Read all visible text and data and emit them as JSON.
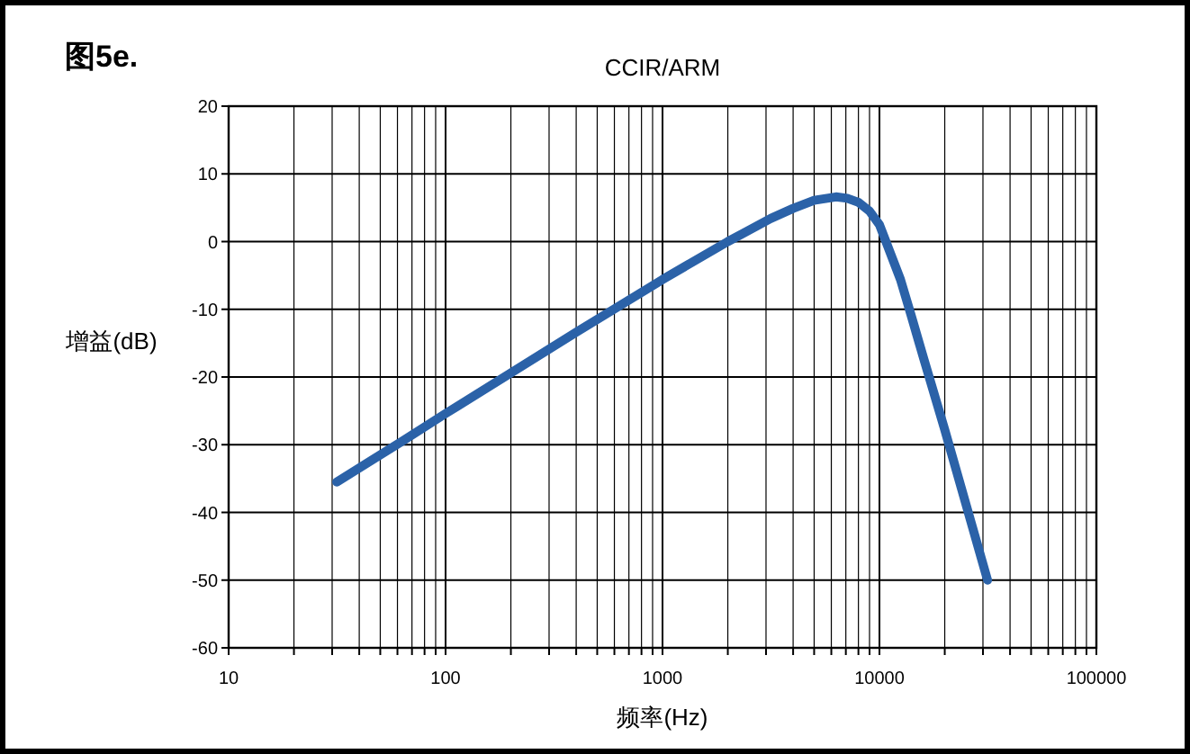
{
  "chart_data": {
    "type": "line",
    "title": "CCIR/ARM",
    "xlabel": "频率(Hz)",
    "ylabel": "增益(dB)",
    "annotations": [
      "图5e."
    ],
    "log": "x",
    "grid": true,
    "marker": "none",
    "line_style": "solid",
    "x": [
      31.5,
      63,
      100,
      200,
      400,
      800,
      1000,
      2000,
      3150,
      4000,
      5000,
      6300,
      7100,
      8000,
      9000,
      10000,
      12500,
      14000,
      16000,
      20000,
      31500
    ],
    "series": [
      {
        "color": "#2b62a8",
        "values": [
          -35.5,
          -29.5,
          -25.4,
          -19.4,
          -13.4,
          -7.5,
          -5.6,
          0,
          3.4,
          4.9,
          6.1,
          6.6,
          6.4,
          5.8,
          4.5,
          2.5,
          -5.6,
          -10.9,
          -17.3,
          -27.8,
          -50
        ]
      }
    ],
    "xlim": [
      10,
      100000
    ],
    "xticks": [
      10,
      {
        "value": 20,
        "label": null
      },
      {
        "value": 30,
        "label": null
      },
      {
        "value": 40,
        "label": null
      },
      {
        "value": 50,
        "label": null
      },
      {
        "value": 60,
        "label": null
      },
      {
        "value": 70,
        "label": null
      },
      {
        "value": 80,
        "label": null
      },
      {
        "value": 90,
        "label": null
      },
      100,
      {
        "value": 200,
        "label": null
      },
      {
        "value": 300,
        "label": null
      },
      {
        "value": 400,
        "label": null
      },
      {
        "value": 500,
        "label": null
      },
      {
        "value": 600,
        "label": null
      },
      {
        "value": 700,
        "label": null
      },
      {
        "value": 800,
        "label": null
      },
      {
        "value": 900,
        "label": null
      },
      1000,
      {
        "value": 2000,
        "label": null
      },
      {
        "value": 3000,
        "label": null
      },
      {
        "value": 4000,
        "label": null
      },
      {
        "value": 5000,
        "label": null
      },
      {
        "value": 6000,
        "label": null
      },
      {
        "value": 7000,
        "label": null
      },
      {
        "value": 8000,
        "label": null
      },
      {
        "value": 9000,
        "label": null
      },
      10000,
      {
        "value": 20000,
        "label": null
      },
      {
        "value": 30000,
        "label": null
      },
      {
        "value": 40000,
        "label": null
      },
      {
        "value": 50000,
        "label": null
      },
      {
        "value": 60000,
        "label": null
      },
      {
        "value": 70000,
        "label": null
      },
      {
        "value": 80000,
        "label": null
      },
      {
        "value": 90000,
        "label": null
      },
      100000
    ],
    "ylim": [
      -60,
      20
    ],
    "yticks": [
      -60,
      -50,
      -40,
      -30,
      -20,
      -10,
      0,
      10,
      20
    ]
  }
}
